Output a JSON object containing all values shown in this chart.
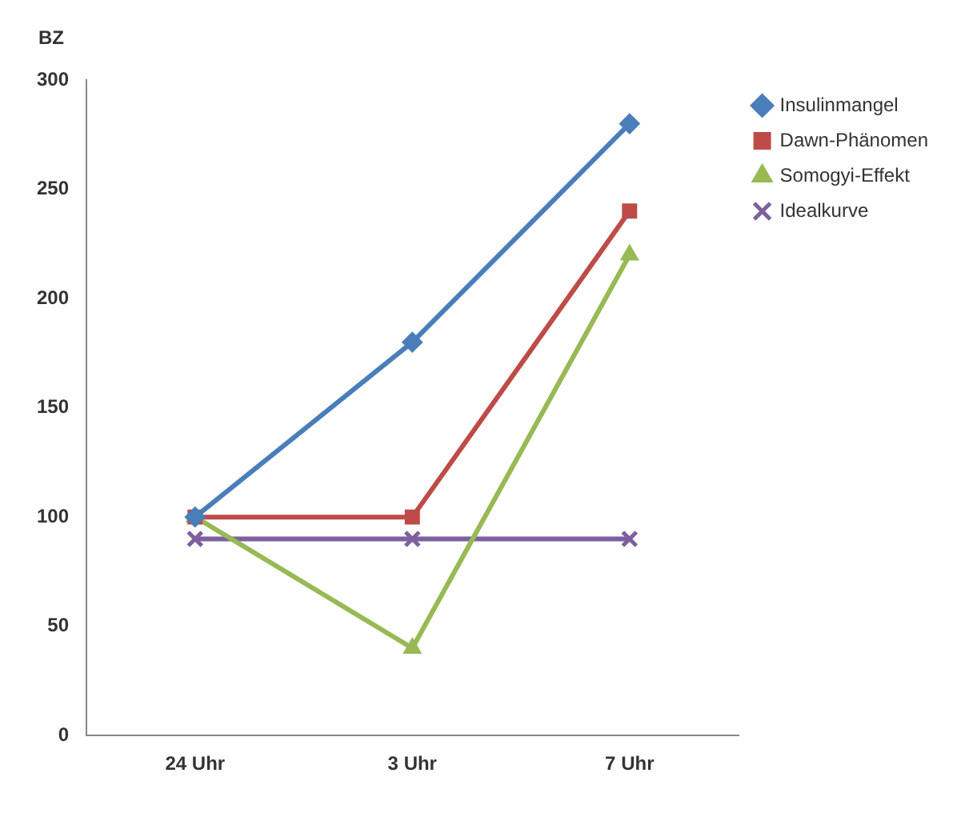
{
  "chart_data": {
    "type": "line",
    "ylabel": "BZ",
    "categories": [
      "24 Uhr",
      "3 Uhr",
      "7 Uhr"
    ],
    "series": [
      {
        "name": "Insulinmangel",
        "color": "#4a7ebb",
        "marker": "diamond",
        "values": [
          100,
          180,
          280
        ]
      },
      {
        "name": "Dawn-Phänomen",
        "color": "#be4b48",
        "marker": "square",
        "values": [
          100,
          100,
          240
        ]
      },
      {
        "name": "Somogyi-Effekt",
        "color": "#98b954",
        "marker": "triangle",
        "values": [
          100,
          40,
          220
        ]
      },
      {
        "name": "Idealkurve",
        "color": "#7d60a0",
        "marker": "cross",
        "values": [
          90,
          90,
          90
        ]
      }
    ],
    "ylim": [
      0,
      300
    ],
    "yticks": [
      0,
      50,
      100,
      150,
      200,
      250,
      300
    ],
    "grid": false,
    "legend": "top right"
  }
}
